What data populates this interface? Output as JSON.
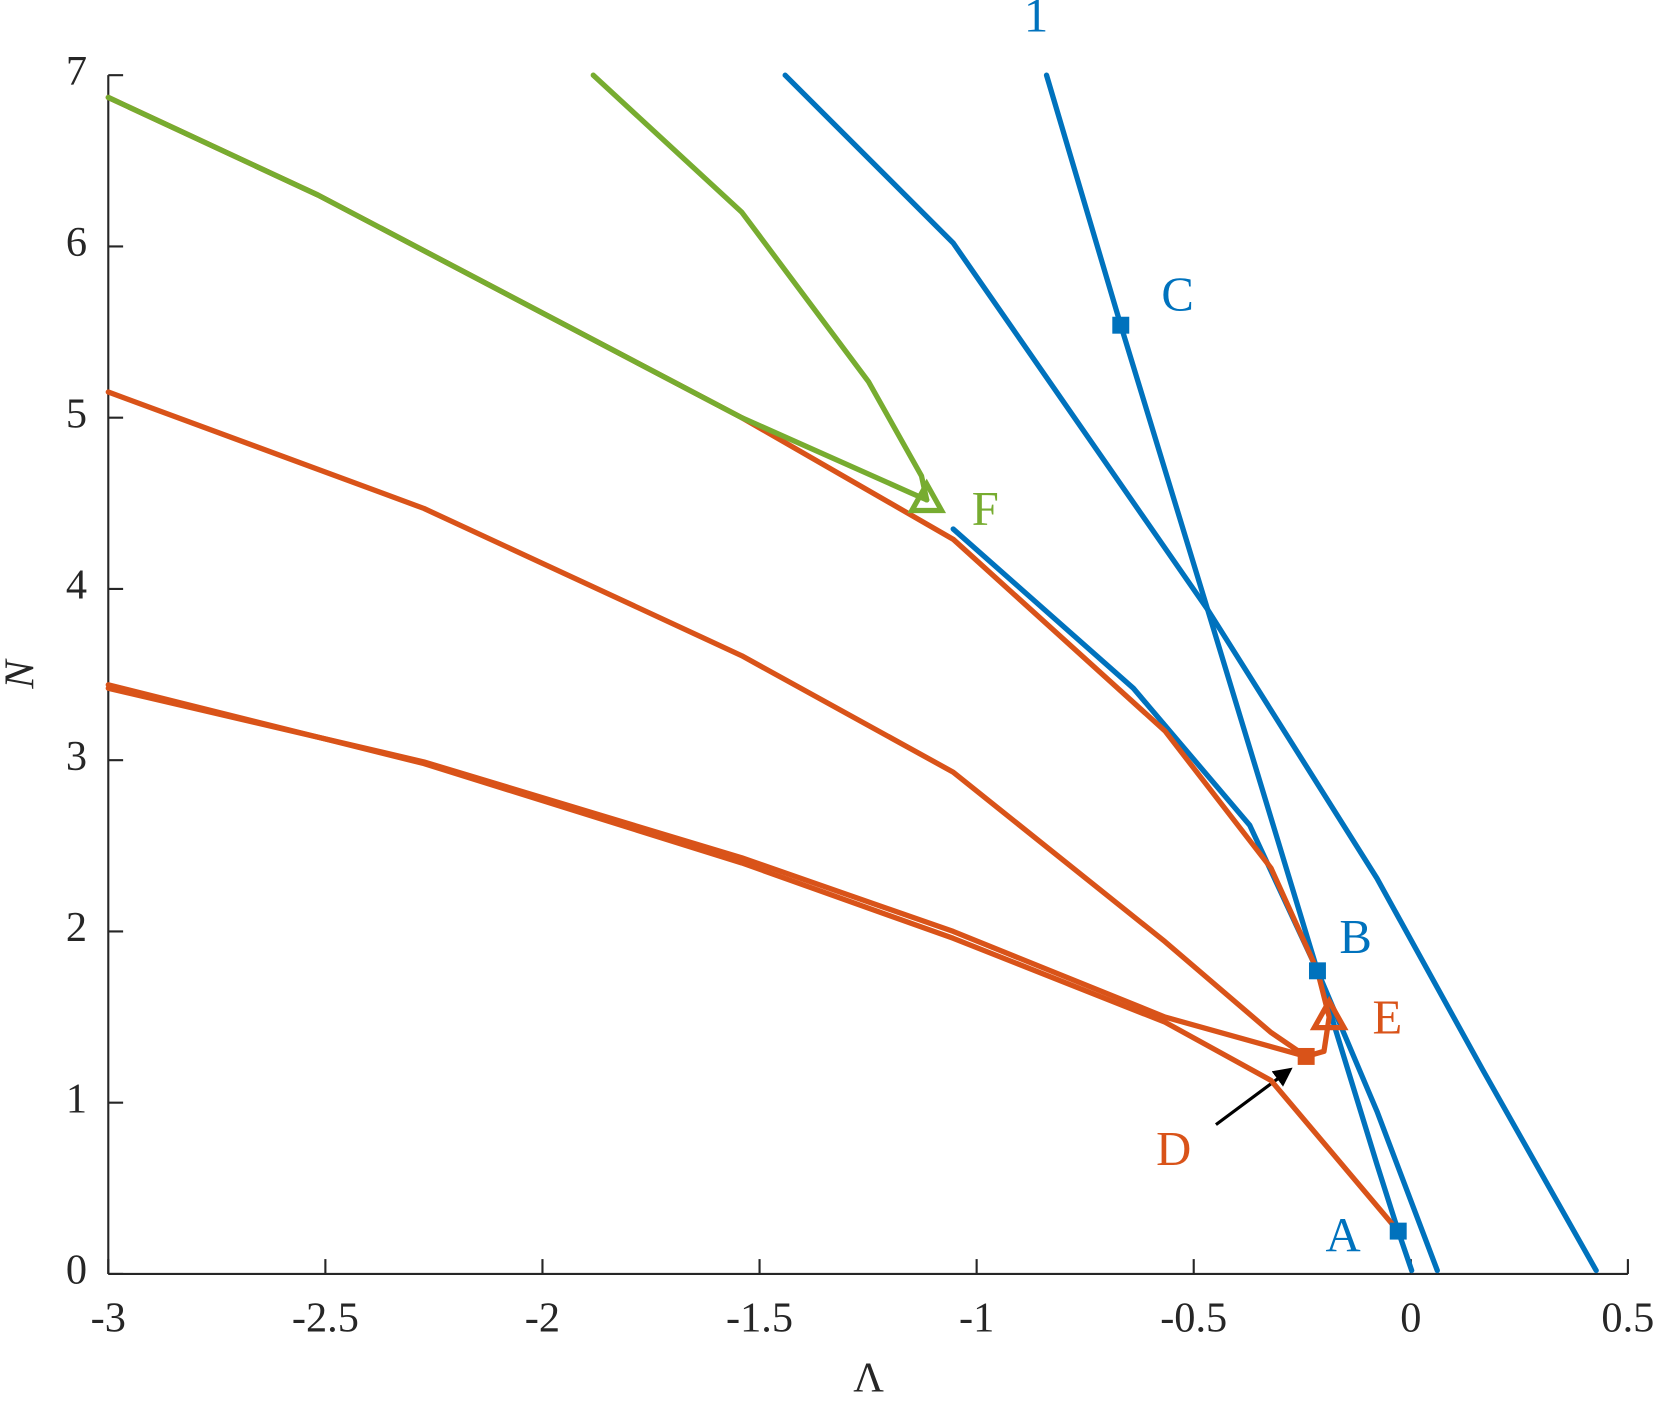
{
  "chart_data": {
    "type": "line",
    "x_label": "Λ",
    "y_label": "N",
    "xlim": [
      -3,
      0.5
    ],
    "ylim": [
      0,
      7
    ],
    "xticks": [
      -3,
      -2.5,
      -2,
      -1.5,
      -1,
      -0.5,
      0,
      0.5
    ],
    "yticks": [
      0,
      1,
      2,
      3,
      4,
      5,
      6,
      7
    ],
    "series": [
      {
        "color": "#0072BD",
        "x": [
          -0.839,
          -0.668,
          -0.468,
          -0.215,
          -0.078,
          -0.029,
          0.002
        ],
        "values": [
          7,
          5.54,
          3.88,
          1.77,
          0.64,
          0.25,
          0.02
        ]
      },
      {
        "color": "#0072BD",
        "x": [
          -1.441,
          -1.054,
          -0.468,
          -0.078,
          0.166,
          0.427
        ],
        "values": [
          7,
          6.02,
          3.88,
          2.31,
          1.19,
          0.02
        ]
      },
      {
        "color": "#0072BD",
        "x": [
          -1.054,
          -0.639,
          -0.371,
          -0.215,
          -0.078,
          0.061
        ],
        "values": [
          4.35,
          3.42,
          2.62,
          1.77,
          0.95,
          0.02
        ]
      },
      {
        "color": "#D95319",
        "x": [
          -3,
          -2.517,
          -2.029,
          -1.541,
          -1.054,
          -0.566,
          -0.322,
          -0.215,
          -0.188,
          -0.2,
          -0.241
        ],
        "values": [
          6.87,
          6.3,
          5.65,
          5.0,
          4.29,
          3.17,
          2.37,
          1.77,
          1.5,
          1.3,
          1.27
        ]
      },
      {
        "color": "#D95319",
        "x": [
          -3,
          -2.273,
          -1.541,
          -1.054,
          -0.566,
          -0.322,
          -0.241
        ],
        "values": [
          5.15,
          4.47,
          3.61,
          2.93,
          1.94,
          1.41,
          1.27
        ]
      },
      {
        "color": "#D95319",
        "x": [
          -3,
          -2.273,
          -1.541,
          -1.054,
          -0.566,
          -0.241
        ],
        "values": [
          3.42,
          2.99,
          2.43,
          2.0,
          1.5,
          1.27
        ]
      },
      {
        "color": "#D95319",
        "x": [
          -3,
          -2.273,
          -1.541,
          -1.054,
          -0.566,
          -0.322,
          -0.029
        ],
        "values": [
          3.44,
          2.98,
          2.4,
          1.96,
          1.47,
          1.13,
          0.25
        ]
      },
      {
        "color": "#77AC30",
        "x": [
          -3,
          -2.517,
          -2.029,
          -1.541,
          -1.151,
          -1.115
        ],
        "values": [
          6.87,
          6.3,
          5.65,
          5.0,
          4.56,
          4.52
        ]
      },
      {
        "color": "#77AC30",
        "x": [
          -1.883,
          -1.541,
          -1.249,
          -1.127,
          -1.115
        ],
        "values": [
          7,
          6.2,
          5.21,
          4.66,
          4.52
        ]
      }
    ],
    "markers": [
      {
        "shape": "square",
        "color": "#0072BD",
        "x": -0.029,
        "y": 0.25
      },
      {
        "shape": "square",
        "color": "#0072BD",
        "x": -0.215,
        "y": 1.77
      },
      {
        "shape": "square",
        "color": "#0072BD",
        "x": -0.668,
        "y": 5.54
      },
      {
        "shape": "square",
        "color": "#D95319",
        "x": -0.241,
        "y": 1.27
      },
      {
        "shape": "triangle",
        "color": "#D95319",
        "x": -0.188,
        "y": 1.5
      },
      {
        "shape": "triangle",
        "color": "#77AC30",
        "x": -1.115,
        "y": 4.52
      }
    ],
    "annotations": [
      {
        "text": "1",
        "color": "#0072BD",
        "x": -0.863,
        "y": 7.32
      },
      {
        "text": "A",
        "color": "#0072BD",
        "x": -0.156,
        "y": 0.2
      },
      {
        "text": "B",
        "color": "#0072BD",
        "x": -0.127,
        "y": 1.94
      },
      {
        "text": "C",
        "color": "#0072BD",
        "x": -0.537,
        "y": 5.69
      },
      {
        "text": "D",
        "color": "#D95319",
        "x": -0.546,
        "y": 0.7
      },
      {
        "text": "E",
        "color": "#D95319",
        "x": -0.054,
        "y": 1.47
      },
      {
        "text": "F",
        "color": "#77AC30",
        "x": -0.98,
        "y": 4.44
      }
    ]
  }
}
